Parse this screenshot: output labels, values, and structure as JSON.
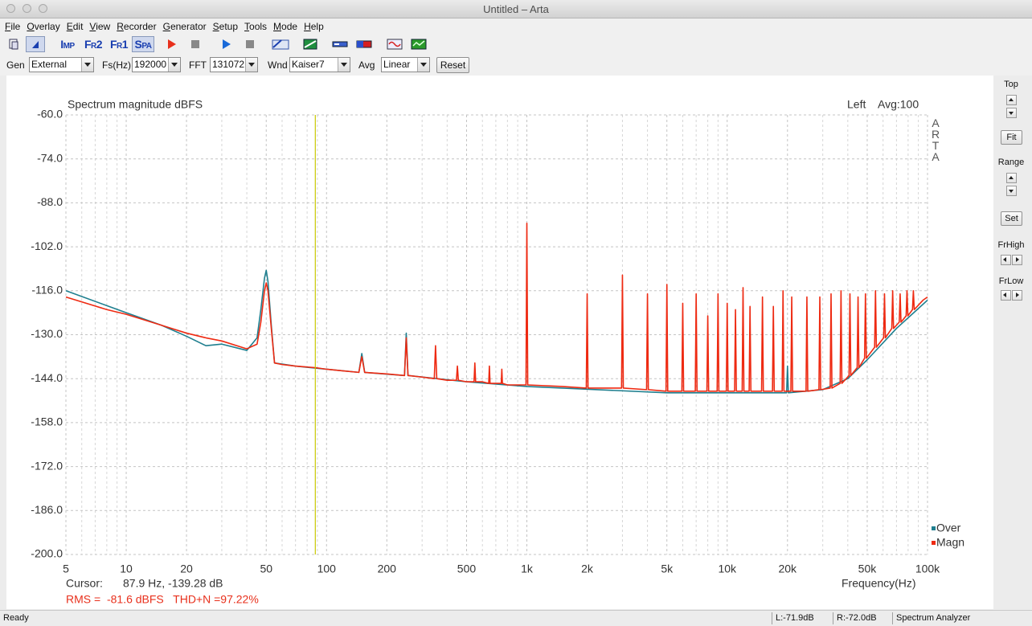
{
  "window": {
    "title": "Untitled – Arta"
  },
  "menu": [
    "File",
    "Overlay",
    "Edit",
    "View",
    "Recorder",
    "Generator",
    "Setup",
    "Tools",
    "Mode",
    "Help"
  ],
  "toolbar": {
    "buttons": [
      "Imp",
      "Fr2",
      "Fr1",
      "Spa"
    ]
  },
  "controls": [
    {
      "label": "Gen",
      "value": "External"
    },
    {
      "label": "Fs(Hz)",
      "value": "192000"
    },
    {
      "label": "FFT",
      "value": "131072"
    },
    {
      "label": "Wnd",
      "value": "Kaiser7"
    },
    {
      "label": "Avg",
      "value": "Linear"
    }
  ],
  "reset": "Reset",
  "side_panel": {
    "top": "Top",
    "fit": "Fit",
    "range": "Range",
    "set": "Set",
    "frhigh": "FrHigh",
    "frlow": "FrLow"
  },
  "status": [
    "Ready",
    "L:-71.9dB",
    "R:-72.0dB",
    "Spectrum Analyzer"
  ],
  "chart_data": {
    "type": "line",
    "title": "Spectrum magnitude dBFS",
    "channel": "Left",
    "average": "Avg:100",
    "watermark": "ARTA",
    "x_label": "Frequency(Hz)",
    "xlog": true,
    "grid": true,
    "xlim": [
      5,
      100000
    ],
    "ylim": [
      -200,
      -60
    ],
    "xticks": [
      5,
      10,
      20,
      50,
      100,
      200,
      500,
      {
        "value": 1000,
        "label": "1k"
      },
      {
        "value": 2000,
        "label": "2k"
      },
      {
        "value": 5000,
        "label": "5k"
      },
      {
        "value": 10000,
        "label": "10k"
      },
      {
        "value": 20000,
        "label": "20k"
      },
      {
        "value": 50000,
        "label": "50k"
      },
      {
        "value": 100000,
        "label": "100k"
      }
    ],
    "xminor_ticks": [
      6,
      7,
      8,
      9,
      30,
      40,
      60,
      70,
      80,
      90,
      300,
      400,
      600,
      700,
      800,
      900,
      3000,
      4000,
      6000,
      7000,
      8000,
      9000,
      30000,
      40000,
      60000,
      70000,
      80000,
      90000
    ],
    "yticks": [
      {
        "value": -60,
        "label": "-60.0"
      },
      {
        "value": -74,
        "label": "-74.0"
      },
      {
        "value": -88,
        "label": "-88.0"
      },
      {
        "value": -102,
        "label": "-102.0"
      },
      {
        "value": -116,
        "label": "-116.0"
      },
      {
        "value": -130,
        "label": "-130.0"
      },
      {
        "value": -144,
        "label": "-144.0"
      },
      {
        "value": -158,
        "label": "-158.0"
      },
      {
        "value": -172,
        "label": "-172.0"
      },
      {
        "value": -186,
        "label": "-186.0"
      },
      {
        "value": -200,
        "label": "-200.0"
      }
    ],
    "series": [
      {
        "name": "Over",
        "color": "#1f7f8f",
        "x": [
          5,
          10,
          15,
          20,
          25,
          30,
          40,
          45,
          47,
          49,
          50,
          51,
          53,
          55,
          70,
          100,
          145,
          150,
          155,
          245,
          250,
          255,
          500,
          1000,
          5000,
          19800,
          20000,
          20200,
          30000,
          40000,
          50000,
          70000,
          100000
        ],
        "values": [
          -116,
          -123,
          -127,
          -130.5,
          -133.5,
          -133,
          -135,
          -131,
          -122,
          -112,
          -109.5,
          -113,
          -127,
          -139,
          -140,
          -141,
          -142,
          -136,
          -142,
          -143,
          -129.5,
          -143,
          -145,
          -146.5,
          -148.5,
          -148.5,
          -140,
          -148.5,
          -147.5,
          -144,
          -138,
          -128,
          -119
        ]
      },
      {
        "name": "Magn",
        "color": "#ee2a12",
        "x": [
          5,
          8,
          10,
          15,
          20,
          25,
          30,
          40,
          45,
          47,
          49,
          50,
          51,
          53,
          55,
          60,
          70,
          88,
          100,
          120,
          145,
          150,
          155,
          200,
          245,
          250,
          255,
          300,
          345,
          350,
          355,
          400,
          445,
          450,
          455,
          500,
          545,
          550,
          555,
          600,
          645,
          650,
          655,
          700,
          745,
          750,
          755,
          800,
          990,
          1000,
          1010,
          1500,
          1980,
          2000,
          2020,
          2970,
          3000,
          3030,
          3960,
          4000,
          4040,
          4950,
          5000,
          5050,
          5940,
          6000,
          6060,
          6930,
          7000,
          7070,
          7920,
          8000,
          8080,
          8910,
          9000,
          9090,
          9900,
          10000,
          10100,
          10890,
          11000,
          11110,
          11880,
          12000,
          12120,
          12870,
          13000,
          13130,
          14850,
          15000,
          15150,
          16830,
          17000,
          17170,
          18810,
          19000,
          19190,
          20790,
          21000,
          21210,
          24750,
          25000,
          25250,
          28710,
          29000,
          29290,
          32670,
          33000,
          33330,
          36630,
          37000,
          37370,
          40590,
          41000,
          41410,
          44550,
          45000,
          45450,
          48510,
          49000,
          49490,
          54450,
          55000,
          55550,
          60390,
          61000,
          61610,
          66330,
          67000,
          67670,
          72270,
          73000,
          73730,
          78210,
          79000,
          79790,
          84150,
          85000,
          85850,
          95000,
          100000
        ],
        "values": [
          -118,
          -122,
          -123.5,
          -127,
          -129.5,
          -131,
          -132,
          -134.5,
          -133,
          -126,
          -116,
          -113.5,
          -116,
          -128,
          -139,
          -139.5,
          -140,
          -140.5,
          -141,
          -141.5,
          -142,
          -137,
          -142,
          -142.5,
          -143,
          -131,
          -143,
          -143.5,
          -144,
          -133.5,
          -144,
          -144.5,
          -144.5,
          -140,
          -144.5,
          -145,
          -145,
          -139,
          -145,
          -145,
          -145.5,
          -140,
          -145.5,
          -145.5,
          -145.5,
          -141,
          -145.5,
          -146,
          -146,
          -94.5,
          -146,
          -146.5,
          -147,
          -117,
          -147,
          -147,
          -111,
          -147,
          -147.5,
          -117,
          -147.5,
          -148,
          -114,
          -148,
          -148,
          -120,
          -148,
          -148,
          -117,
          -148,
          -148,
          -124,
          -148,
          -148,
          -117,
          -148,
          -148,
          -120,
          -148,
          -148,
          -122,
          -148,
          -148,
          -115,
          -148,
          -148,
          -121,
          -148,
          -148,
          -118,
          -148,
          -148,
          -121,
          -148,
          -148,
          -116,
          -148,
          -148,
          -118,
          -148,
          -148,
          -118,
          -148,
          -147.5,
          -118,
          -147.5,
          -147,
          -117,
          -147,
          -145.5,
          -116,
          -145.5,
          -143,
          -117,
          -143,
          -140.5,
          -118,
          -140.5,
          -137.5,
          -117,
          -137.5,
          -134,
          -116,
          -134,
          -131,
          -117,
          -131,
          -128,
          -116,
          -128,
          -126,
          -117,
          -126,
          -124,
          -116,
          -124,
          -122,
          -116,
          -122,
          -119,
          -118
        ]
      }
    ],
    "cursor": {
      "label": "Cursor:",
      "text": "87.9 Hz, -139.28 dB",
      "x": 87.9,
      "color": "#c8c800"
    },
    "footer": "RMS =  -81.6 dBFS   THD+N =97.22%"
  }
}
